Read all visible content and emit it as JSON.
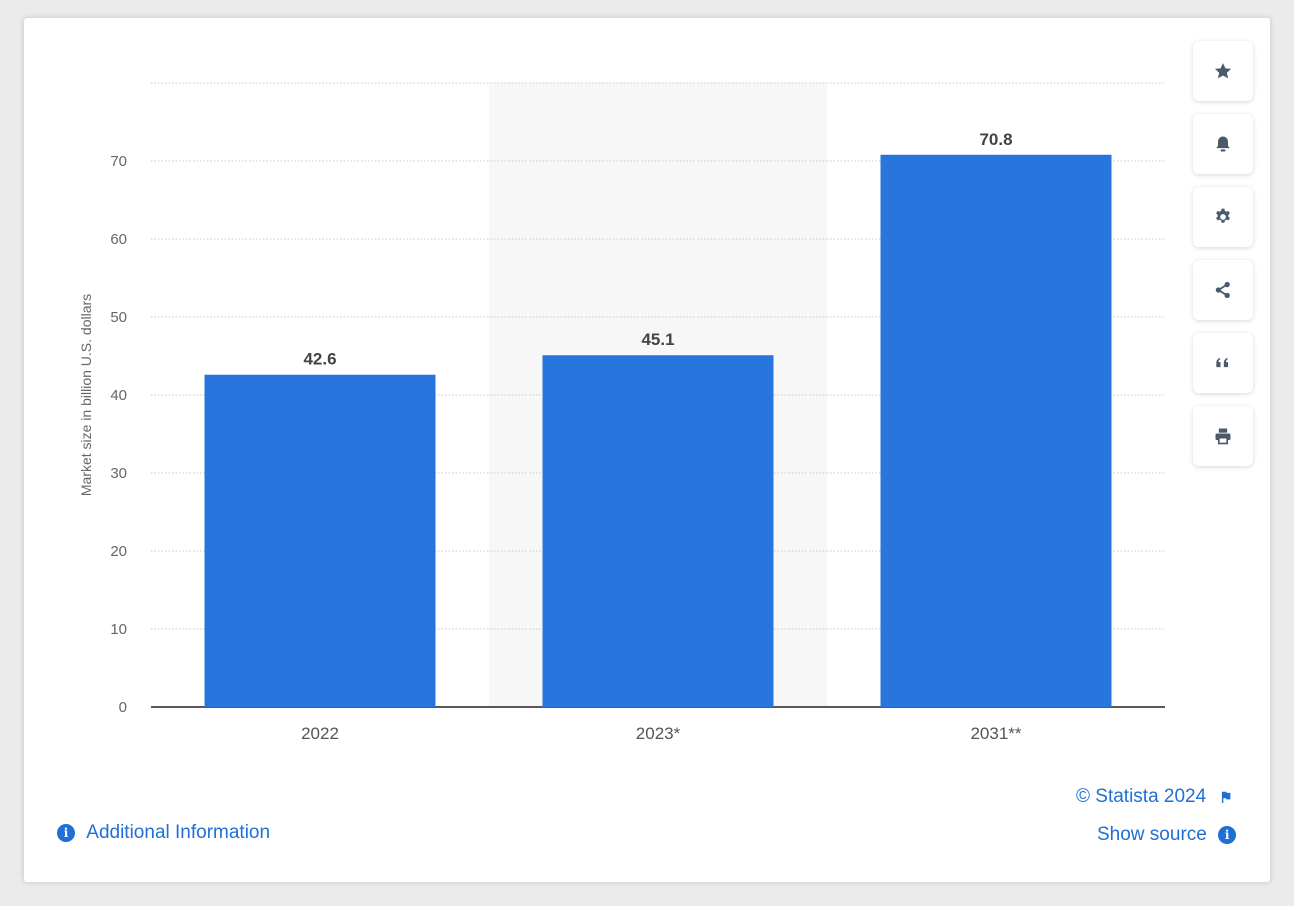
{
  "chart_data": {
    "type": "bar",
    "categories": [
      "2022",
      "2023*",
      "2031**"
    ],
    "values": [
      42.6,
      45.1,
      70.8
    ],
    "data_labels": [
      "42.6",
      "45.1",
      "70.8"
    ],
    "ylabel": "Market size in billion U.S. dollars",
    "xlabel": "",
    "title": "",
    "ylim": [
      0,
      80
    ],
    "yticks": [
      0,
      10,
      20,
      30,
      40,
      50,
      60,
      70
    ],
    "grid": true,
    "highlighted_category": "2023*"
  },
  "colors": {
    "bar": "#2876dd",
    "highlight_band": "#f7f7f7",
    "link": "#1f6fd6",
    "icon": "#4a5a6c"
  },
  "toolbar": [
    {
      "icon": "star-icon",
      "label": "Favorite"
    },
    {
      "icon": "bell-icon",
      "label": "Notifications"
    },
    {
      "icon": "gear-icon",
      "label": "Settings"
    },
    {
      "icon": "share-icon",
      "label": "Share"
    },
    {
      "icon": "quote-icon",
      "label": "Cite"
    },
    {
      "icon": "print-icon",
      "label": "Print"
    }
  ],
  "footer": {
    "additional_info": "Additional Information",
    "copyright": "© Statista 2024",
    "show_source": "Show source",
    "info_glyph": "i"
  }
}
